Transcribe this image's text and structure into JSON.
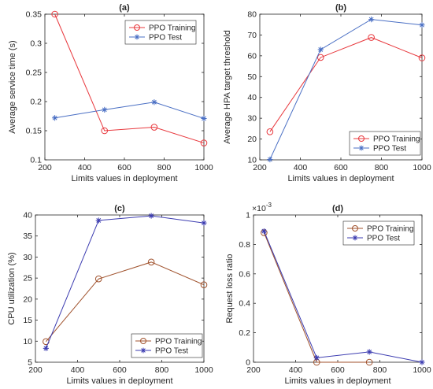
{
  "chart_data": [
    {
      "type": "line",
      "panel_label": "(a)",
      "xlabel": "Limits values in deployment",
      "ylabel": "Average service time (s)",
      "xlim": [
        200,
        1000
      ],
      "ylim": [
        0.1,
        0.35
      ],
      "xticks": [
        200,
        400,
        600,
        800,
        1000
      ],
      "yticks": [
        0.1,
        0.15,
        0.2,
        0.25,
        0.3,
        0.35
      ],
      "ytick_labels": [
        "0.1",
        "0.15",
        "0.2",
        "0.25",
        "0.3",
        "0.35"
      ],
      "legend_position": "top-right",
      "x": [
        250,
        500,
        750,
        1000
      ],
      "series": [
        {
          "name": "PPO Training",
          "marker": "circle",
          "color": "#e8383d",
          "values": [
            0.35,
            0.15,
            0.156,
            0.129
          ]
        },
        {
          "name": "PPO Test",
          "marker": "star",
          "color": "#4a6fc4",
          "values": [
            0.172,
            0.186,
            0.199,
            0.171
          ]
        }
      ]
    },
    {
      "type": "line",
      "panel_label": "(b)",
      "xlabel": "Limits values in deployment",
      "ylabel": "Average HPA target threshold",
      "xlim": [
        200,
        1000
      ],
      "ylim": [
        10,
        80
      ],
      "xticks": [
        200,
        400,
        600,
        800,
        1000
      ],
      "yticks": [
        10,
        20,
        30,
        40,
        50,
        60,
        70,
        80
      ],
      "ytick_labels": [
        "10",
        "20",
        "30",
        "40",
        "50",
        "60",
        "70",
        "80"
      ],
      "legend_position": "bottom-right",
      "x": [
        250,
        500,
        750,
        1000
      ],
      "series": [
        {
          "name": "PPO Training",
          "marker": "circle",
          "color": "#e8383d",
          "values": [
            23.5,
            59.2,
            68.8,
            59
          ]
        },
        {
          "name": "PPO Test",
          "marker": "star",
          "color": "#4a6fc4",
          "values": [
            10.2,
            63,
            77.5,
            74.8
          ]
        }
      ]
    },
    {
      "type": "line",
      "panel_label": "(c)",
      "xlabel": "Limits values in deployment",
      "ylabel": "CPU utilization (%)",
      "xlim": [
        200,
        1000
      ],
      "ylim": [
        5,
        40
      ],
      "xticks": [
        200,
        400,
        600,
        800,
        1000
      ],
      "yticks": [
        5,
        10,
        15,
        20,
        25,
        30,
        35,
        40
      ],
      "ytick_labels": [
        "5",
        "10",
        "15",
        "20",
        "25",
        "30",
        "35",
        "40"
      ],
      "legend_position": "bottom-right",
      "x": [
        250,
        500,
        750,
        1000
      ],
      "series": [
        {
          "name": "PPO Training",
          "marker": "circle",
          "color": "#a0522d",
          "values": [
            9.9,
            24.8,
            28.8,
            23.4
          ]
        },
        {
          "name": "PPO Test",
          "marker": "star",
          "color": "#3b3bb0",
          "values": [
            8.3,
            38.7,
            39.8,
            38.1
          ]
        }
      ]
    },
    {
      "type": "line",
      "panel_label": "(d)",
      "xlabel": "Limits values in deployment",
      "ylabel": "Request loss ratio",
      "xlim": [
        200,
        1000
      ],
      "ylim": [
        0,
        0.001
      ],
      "xticks": [
        200,
        400,
        600,
        800,
        1000
      ],
      "yticks": [
        0,
        0.0002,
        0.0004,
        0.0006,
        0.0008,
        0.001
      ],
      "ytick_labels": [
        "0",
        "0.2",
        "0.4",
        "0.6",
        "0.8",
        "1"
      ],
      "y_exponent_label": "10",
      "y_exponent_power": "-3",
      "y_exponent_prefix": "×",
      "legend_position": "top-right",
      "x": [
        250,
        500,
        750,
        1000
      ],
      "series": [
        {
          "name": "PPO Training",
          "marker": "circle",
          "color": "#a0522d",
          "values": [
            0.00088,
            0.0,
            0.0,
            null
          ]
        },
        {
          "name": "PPO Test",
          "marker": "star",
          "color": "#3b3bb0",
          "values": [
            0.00089,
            3e-05,
            7e-05,
            0.0
          ]
        }
      ]
    }
  ]
}
